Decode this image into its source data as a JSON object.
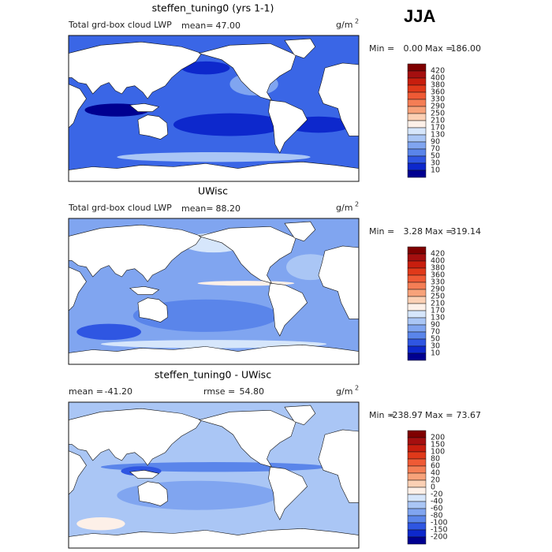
{
  "season": "JJA",
  "panels": [
    {
      "title": "steffen_tuning0 (yrs 1-1)",
      "left_label": "Total grd-box cloud LWP",
      "mean_label": "mean=",
      "mean": "47.00",
      "units": "g/m",
      "units_sup": "2",
      "min_label": "Min =",
      "min": "0.00",
      "max_label": "Max =",
      "max": "186.00",
      "colorbar": {
        "labels": [
          "420",
          "400",
          "380",
          "360",
          "330",
          "290",
          "250",
          "210",
          "170",
          "130",
          "90",
          "70",
          "50",
          "30",
          "10"
        ],
        "colors": [
          "#7f0000",
          "#a50f0f",
          "#c81e0e",
          "#e0391a",
          "#ef5a35",
          "#f47e55",
          "#f7a27a",
          "#fbd0b4",
          "#fdf0e8",
          "#d6e6fb",
          "#aac6f5",
          "#80a5f0",
          "#5a85ea",
          "#2f56e2",
          "#0d28cc",
          "#000090"
        ]
      }
    },
    {
      "title": "UWisc",
      "left_label": "Total grd-box cloud LWP",
      "mean_label": "mean=",
      "mean": "88.20",
      "units": "g/m",
      "units_sup": "2",
      "min_label": "Min =",
      "min": "3.28",
      "max_label": "Max =",
      "max": "319.14",
      "colorbar": {
        "labels": [
          "420",
          "400",
          "380",
          "360",
          "330",
          "290",
          "250",
          "210",
          "170",
          "130",
          "90",
          "70",
          "50",
          "30",
          "10"
        ],
        "colors": [
          "#7f0000",
          "#a50f0f",
          "#c81e0e",
          "#e0391a",
          "#ef5a35",
          "#f47e55",
          "#f7a27a",
          "#fbd0b4",
          "#fdf0e8",
          "#d6e6fb",
          "#aac6f5",
          "#80a5f0",
          "#5a85ea",
          "#2f56e2",
          "#0d28cc",
          "#000090"
        ]
      }
    },
    {
      "title": "steffen_tuning0 - UWisc",
      "mean_label": "mean =",
      "mean": "-41.20",
      "rmse_label": "rmse =",
      "rmse": "54.80",
      "units": "g/m",
      "units_sup": "2",
      "min_label": "Min =",
      "min": "-238.97",
      "max_label": "Max =",
      "max": "73.67",
      "colorbar": {
        "labels": [
          "200",
          "150",
          "100",
          "80",
          "60",
          "40",
          "20",
          "0",
          "-20",
          "-40",
          "-60",
          "-80",
          "-100",
          "-150",
          "-200"
        ],
        "colors": [
          "#7f0000",
          "#a50f0f",
          "#c81e0e",
          "#e0391a",
          "#ef5a35",
          "#f47e55",
          "#f7a27a",
          "#fbd0b4",
          "#fdf0e8",
          "#d6e6fb",
          "#aac6f5",
          "#80a5f0",
          "#5a85ea",
          "#2f56e2",
          "#0d28cc",
          "#000090"
        ]
      }
    }
  ]
}
